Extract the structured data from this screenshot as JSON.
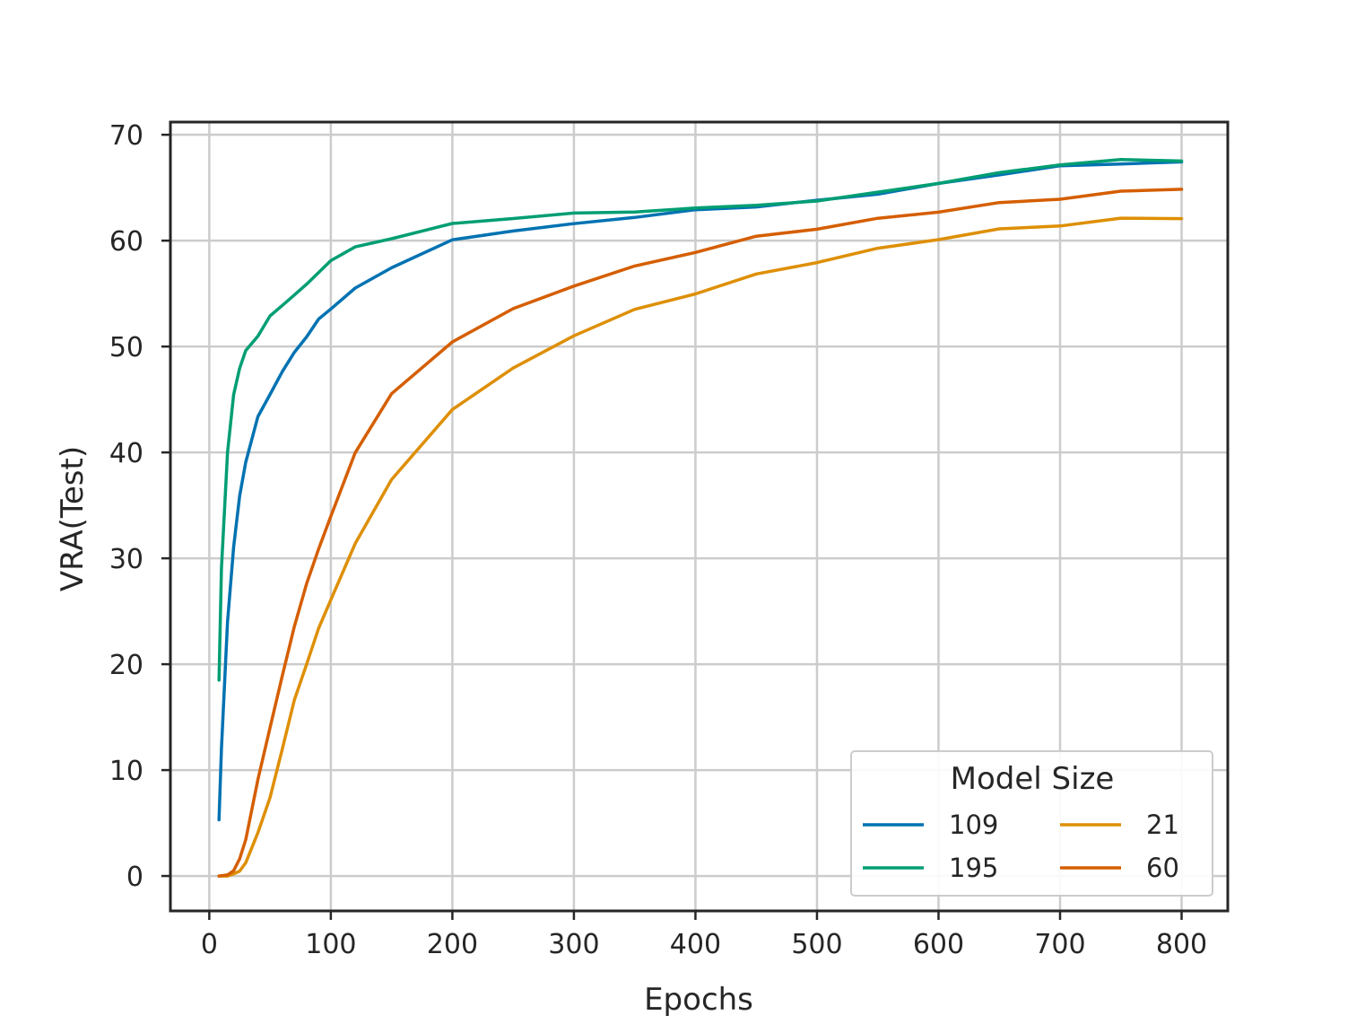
{
  "chart_data": {
    "type": "line",
    "xlabel": "Epochs",
    "ylabel": "VRA(Test)",
    "xlim": [
      -32,
      838
    ],
    "ylim": [
      -3.3,
      71.2
    ],
    "xticks": [
      0,
      100,
      200,
      300,
      400,
      500,
      600,
      700,
      800
    ],
    "yticks": [
      0,
      10,
      20,
      30,
      40,
      50,
      60,
      70
    ],
    "grid": true,
    "legend": {
      "title": "Model Size",
      "position": "lower-right",
      "ncol": 2
    },
    "series": [
      {
        "name": "109",
        "color": "#0072b2",
        "x": [
          8,
          10,
          15,
          20,
          25,
          30,
          40,
          50,
          60,
          70,
          80,
          90,
          100,
          120,
          150,
          200,
          250,
          300,
          350,
          400,
          450,
          500,
          550,
          600,
          650,
          700,
          750,
          800
        ],
        "y": [
          5.3,
          12,
          24,
          31,
          36,
          39,
          43.5,
          45.5,
          47.5,
          49.5,
          51,
          52.5,
          53.5,
          55.5,
          57.5,
          60,
          61,
          61.5,
          62.3,
          62.8,
          63.3,
          63.7,
          64.5,
          65.3,
          66.3,
          67,
          67.3,
          67.4
        ]
      },
      {
        "name": "195",
        "color": "#009e73",
        "x": [
          8,
          10,
          15,
          20,
          25,
          30,
          40,
          50,
          60,
          70,
          80,
          90,
          100,
          120,
          150,
          200,
          250,
          300,
          350,
          400,
          450,
          500,
          550,
          600,
          650,
          700,
          750,
          800
        ],
        "y": [
          18.5,
          29,
          40,
          45.5,
          48,
          49.5,
          51,
          53,
          53.8,
          54.8,
          56,
          57,
          58,
          59.5,
          60.3,
          61.5,
          62.2,
          62.5,
          62.8,
          63,
          63.4,
          63.7,
          64.6,
          65.4,
          66.4,
          67.2,
          67.6,
          67.6
        ]
      },
      {
        "name": "21",
        "color": "#de8f05",
        "x": [
          8,
          15,
          20,
          25,
          30,
          40,
          50,
          60,
          70,
          80,
          90,
          100,
          120,
          150,
          200,
          250,
          300,
          350,
          400,
          450,
          500,
          550,
          600,
          650,
          700,
          750,
          800
        ],
        "y": [
          0,
          0,
          0.2,
          0.4,
          1.2,
          4,
          7.5,
          12,
          16.5,
          20,
          23.5,
          26,
          31.5,
          37.5,
          44,
          48,
          51,
          53.5,
          55,
          56.8,
          58,
          59.2,
          60.2,
          61,
          61.5,
          62,
          62.2
        ]
      },
      {
        "name": "60",
        "color": "#d55e00",
        "x": [
          8,
          15,
          20,
          25,
          30,
          40,
          50,
          60,
          70,
          80,
          90,
          100,
          120,
          150,
          200,
          250,
          300,
          350,
          400,
          450,
          500,
          550,
          600,
          650,
          700,
          750,
          800
        ],
        "y": [
          0,
          0.1,
          0.5,
          1.5,
          3.5,
          9,
          14,
          19,
          23.5,
          27.5,
          31,
          34,
          40,
          45.5,
          50.5,
          53.5,
          55.8,
          57.5,
          59,
          60.3,
          61.2,
          62,
          62.8,
          63.5,
          64,
          64.6,
          64.9
        ]
      }
    ]
  }
}
